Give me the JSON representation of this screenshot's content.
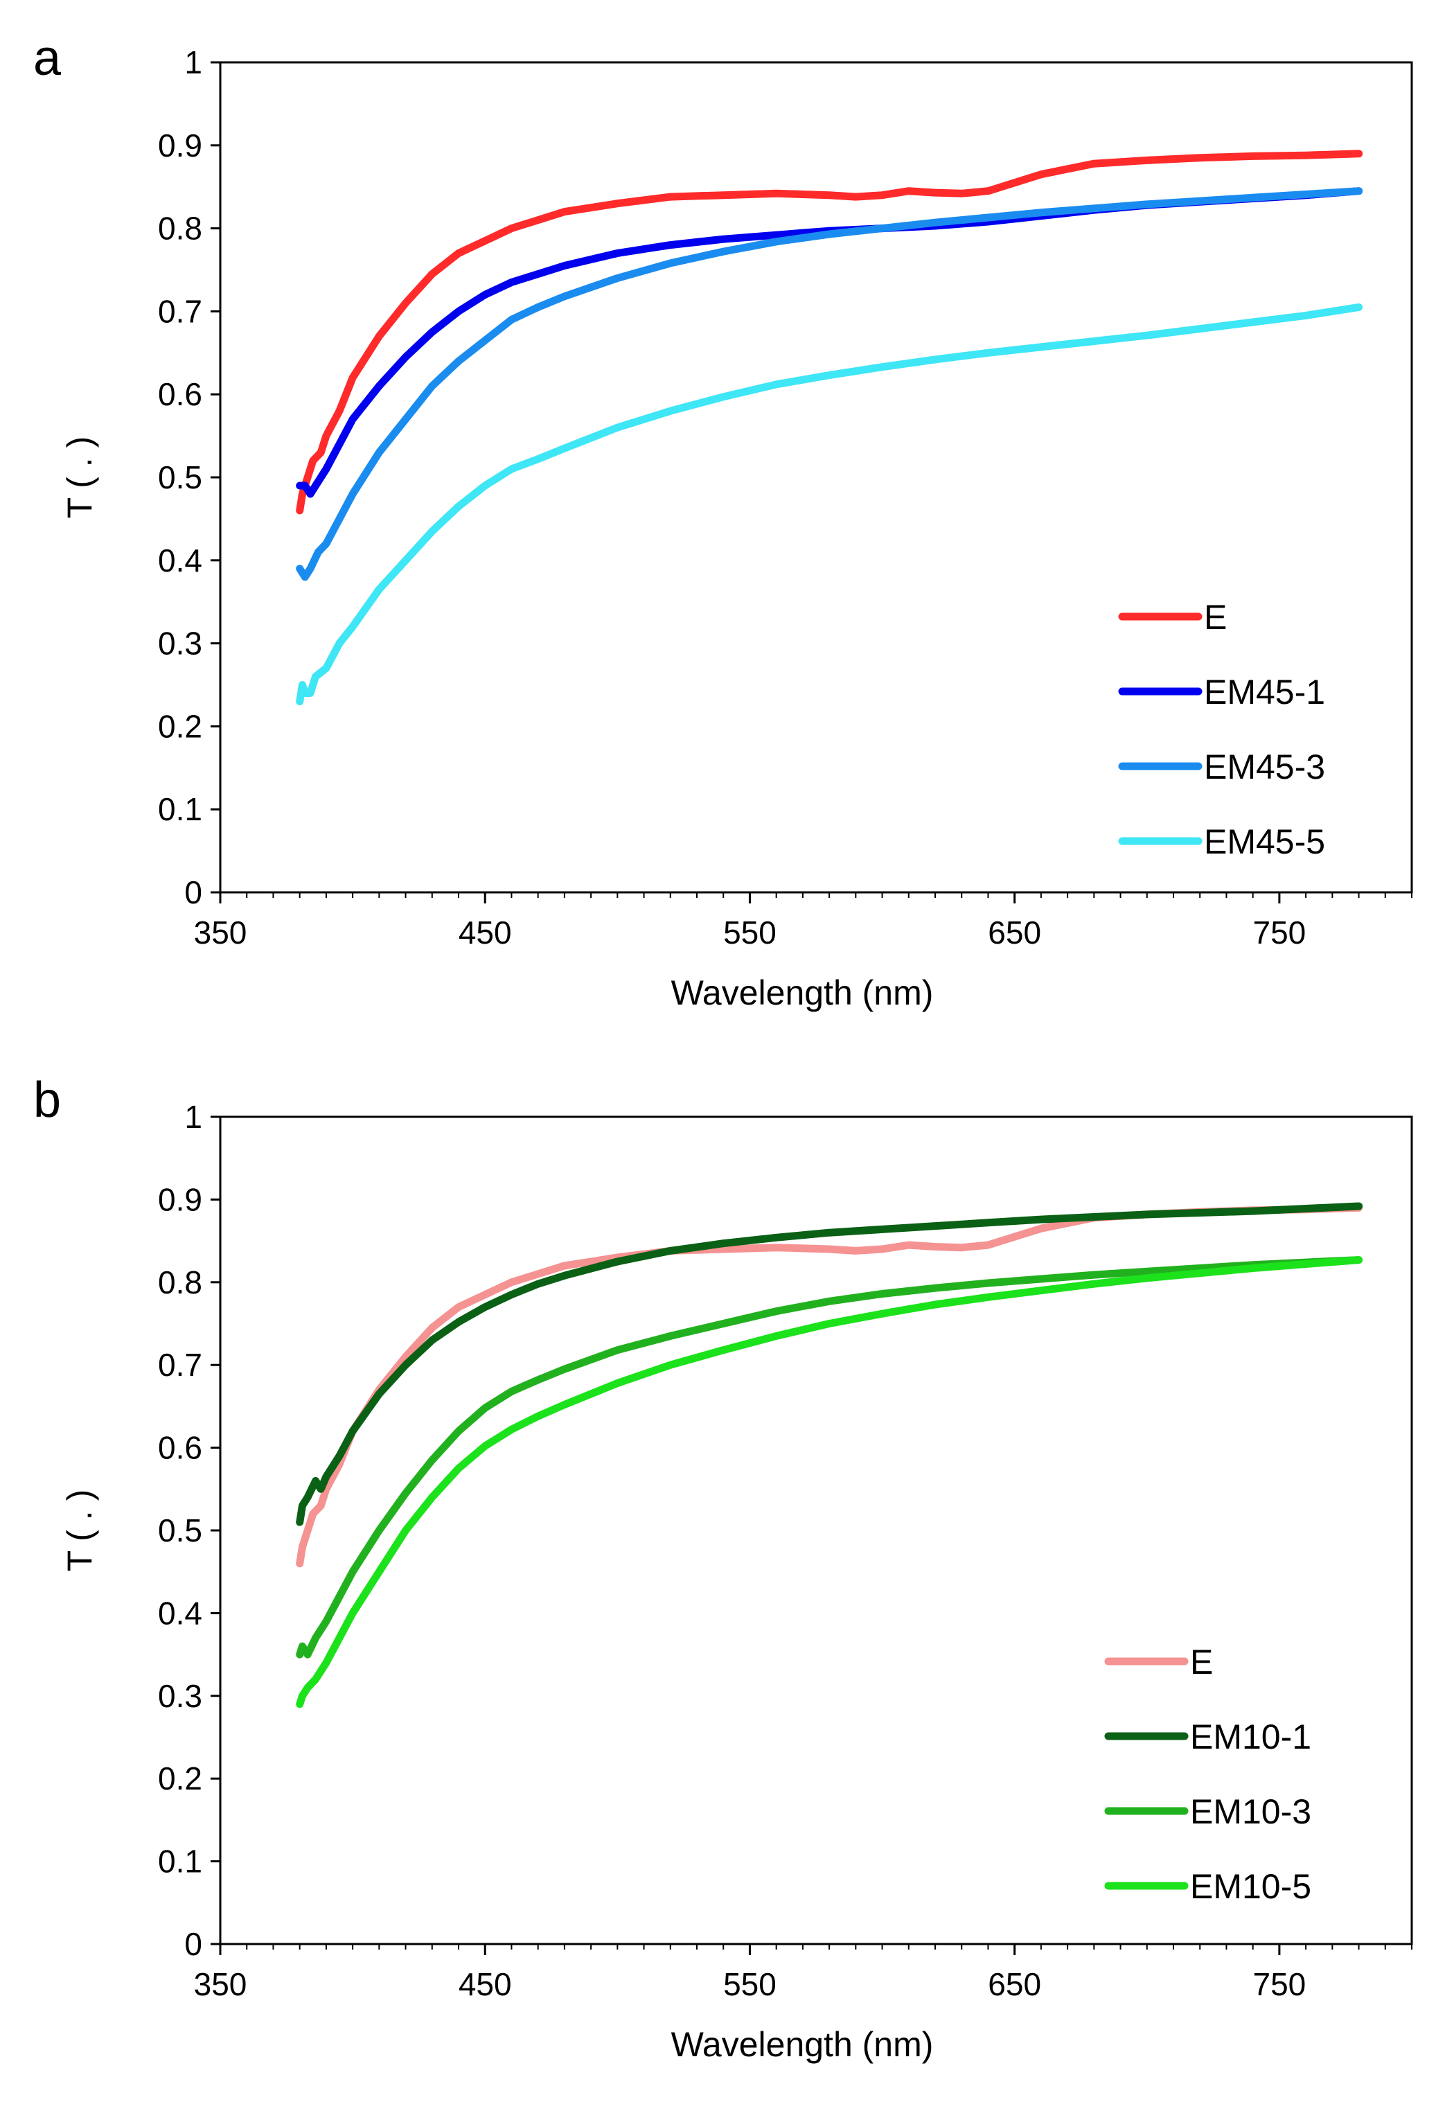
{
  "chart_data": [
    {
      "panel_label": "a",
      "type": "line",
      "xlabel": "Wavelength (nm)",
      "ylabel": "T ( . )",
      "xlim": [
        350,
        800
      ],
      "ylim": [
        0,
        1
      ],
      "xticks": [
        350,
        450,
        550,
        650,
        750
      ],
      "yticks": [
        0,
        0.1,
        0.2,
        0.3,
        0.4,
        0.5,
        0.6,
        0.7,
        0.8,
        0.9,
        1
      ],
      "grid": false,
      "legend_position": "bottom-right",
      "series": [
        {
          "name": "E",
          "color": "#ff2a2a",
          "x": [
            380,
            381,
            383,
            385,
            388,
            390,
            395,
            400,
            410,
            420,
            430,
            440,
            450,
            460,
            470,
            480,
            490,
            500,
            520,
            540,
            560,
            580,
            590,
            600,
            610,
            620,
            630,
            640,
            650,
            660,
            680,
            700,
            720,
            740,
            760,
            780
          ],
          "y": [
            0.46,
            0.48,
            0.5,
            0.52,
            0.53,
            0.55,
            0.58,
            0.62,
            0.67,
            0.71,
            0.745,
            0.77,
            0.785,
            0.8,
            0.81,
            0.82,
            0.825,
            0.83,
            0.838,
            0.84,
            0.842,
            0.84,
            0.838,
            0.84,
            0.845,
            0.843,
            0.842,
            0.845,
            0.855,
            0.865,
            0.878,
            0.882,
            0.885,
            0.887,
            0.888,
            0.89
          ]
        },
        {
          "name": "EM45-1",
          "color": "#0000ee",
          "x": [
            380,
            382,
            384,
            386,
            390,
            395,
            400,
            410,
            420,
            430,
            440,
            450,
            460,
            470,
            480,
            500,
            520,
            540,
            560,
            580,
            600,
            620,
            640,
            660,
            680,
            700,
            720,
            740,
            760,
            780
          ],
          "y": [
            0.49,
            0.49,
            0.48,
            0.49,
            0.51,
            0.54,
            0.57,
            0.61,
            0.645,
            0.675,
            0.7,
            0.72,
            0.735,
            0.745,
            0.755,
            0.77,
            0.78,
            0.787,
            0.792,
            0.797,
            0.8,
            0.803,
            0.808,
            0.815,
            0.822,
            0.828,
            0.832,
            0.836,
            0.84,
            0.845
          ]
        },
        {
          "name": "EM45-3",
          "color": "#1a8cf0",
          "x": [
            380,
            382,
            384,
            387,
            390,
            395,
            400,
            410,
            420,
            430,
            440,
            450,
            460,
            470,
            480,
            500,
            520,
            540,
            560,
            580,
            600,
            620,
            640,
            660,
            680,
            700,
            720,
            740,
            760,
            780
          ],
          "y": [
            0.39,
            0.38,
            0.39,
            0.41,
            0.42,
            0.45,
            0.48,
            0.53,
            0.57,
            0.61,
            0.64,
            0.665,
            0.69,
            0.705,
            0.718,
            0.74,
            0.758,
            0.772,
            0.784,
            0.793,
            0.8,
            0.807,
            0.813,
            0.819,
            0.824,
            0.829,
            0.833,
            0.837,
            0.841,
            0.845
          ]
        },
        {
          "name": "EM45-5",
          "color": "#3ee6f6",
          "x": [
            380,
            381,
            382,
            384,
            386,
            390,
            395,
            400,
            410,
            420,
            430,
            440,
            450,
            460,
            470,
            480,
            500,
            520,
            540,
            560,
            580,
            600,
            620,
            640,
            660,
            680,
            700,
            720,
            740,
            760,
            780
          ],
          "y": [
            0.23,
            0.25,
            0.24,
            0.24,
            0.26,
            0.27,
            0.3,
            0.32,
            0.365,
            0.4,
            0.435,
            0.465,
            0.49,
            0.51,
            0.522,
            0.535,
            0.56,
            0.58,
            0.597,
            0.612,
            0.623,
            0.633,
            0.642,
            0.65,
            0.657,
            0.664,
            0.671,
            0.679,
            0.687,
            0.695,
            0.705
          ]
        }
      ]
    },
    {
      "panel_label": "b",
      "type": "line",
      "xlabel": "Wavelength (nm)",
      "ylabel": "T ( . )",
      "xlim": [
        350,
        800
      ],
      "ylim": [
        0,
        1
      ],
      "xticks": [
        350,
        450,
        550,
        650,
        750
      ],
      "yticks": [
        0,
        0.1,
        0.2,
        0.3,
        0.4,
        0.5,
        0.6,
        0.7,
        0.8,
        0.9,
        1
      ],
      "grid": false,
      "legend_position": "bottom-right",
      "series": [
        {
          "name": "E",
          "color": "#f59292",
          "x": [
            380,
            381,
            383,
            385,
            388,
            390,
            395,
            400,
            410,
            420,
            430,
            440,
            450,
            460,
            470,
            480,
            490,
            500,
            520,
            540,
            560,
            580,
            590,
            600,
            610,
            620,
            630,
            640,
            650,
            660,
            680,
            700,
            720,
            740,
            760,
            780
          ],
          "y": [
            0.46,
            0.48,
            0.5,
            0.52,
            0.53,
            0.55,
            0.58,
            0.62,
            0.67,
            0.71,
            0.745,
            0.77,
            0.785,
            0.8,
            0.81,
            0.82,
            0.825,
            0.83,
            0.838,
            0.84,
            0.842,
            0.84,
            0.838,
            0.84,
            0.845,
            0.843,
            0.842,
            0.845,
            0.855,
            0.865,
            0.878,
            0.882,
            0.885,
            0.887,
            0.888,
            0.89
          ]
        },
        {
          "name": "EM10-1",
          "color": "#0a6014",
          "x": [
            380,
            381,
            383,
            386,
            388,
            390,
            395,
            400,
            410,
            420,
            430,
            440,
            450,
            460,
            470,
            480,
            500,
            520,
            540,
            560,
            580,
            600,
            620,
            640,
            660,
            680,
            700,
            720,
            740,
            760,
            780
          ],
          "y": [
            0.51,
            0.53,
            0.54,
            0.56,
            0.55,
            0.565,
            0.59,
            0.62,
            0.665,
            0.7,
            0.73,
            0.752,
            0.77,
            0.785,
            0.798,
            0.808,
            0.825,
            0.838,
            0.847,
            0.854,
            0.86,
            0.864,
            0.868,
            0.872,
            0.876,
            0.879,
            0.882,
            0.884,
            0.886,
            0.889,
            0.892
          ]
        },
        {
          "name": "EM10-3",
          "color": "#22b11e",
          "x": [
            380,
            381,
            383,
            386,
            390,
            395,
            400,
            410,
            420,
            430,
            440,
            450,
            460,
            470,
            480,
            500,
            520,
            540,
            560,
            580,
            600,
            620,
            640,
            660,
            680,
            700,
            720,
            740,
            760,
            780
          ],
          "y": [
            0.35,
            0.36,
            0.35,
            0.37,
            0.39,
            0.42,
            0.45,
            0.5,
            0.545,
            0.585,
            0.62,
            0.648,
            0.668,
            0.682,
            0.695,
            0.718,
            0.735,
            0.75,
            0.765,
            0.777,
            0.786,
            0.793,
            0.799,
            0.804,
            0.809,
            0.813,
            0.817,
            0.821,
            0.824,
            0.827
          ]
        },
        {
          "name": "EM10-5",
          "color": "#1be21b",
          "x": [
            380,
            381,
            383,
            386,
            390,
            395,
            400,
            410,
            420,
            430,
            440,
            450,
            460,
            470,
            480,
            500,
            520,
            540,
            560,
            580,
            600,
            620,
            640,
            660,
            680,
            700,
            720,
            740,
            760,
            780
          ],
          "y": [
            0.29,
            0.3,
            0.31,
            0.32,
            0.34,
            0.37,
            0.4,
            0.45,
            0.5,
            0.54,
            0.575,
            0.602,
            0.622,
            0.638,
            0.652,
            0.678,
            0.7,
            0.718,
            0.735,
            0.75,
            0.762,
            0.773,
            0.782,
            0.79,
            0.798,
            0.805,
            0.811,
            0.817,
            0.822,
            0.827
          ]
        }
      ]
    }
  ]
}
